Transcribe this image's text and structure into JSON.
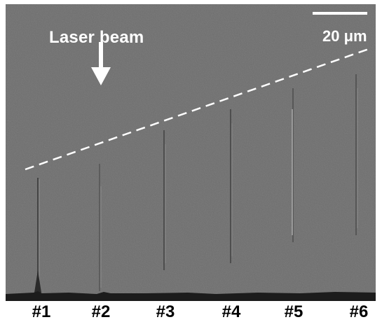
{
  "annotations": {
    "beam_label": "Laser beam",
    "scale_bar_label": "20 μm"
  },
  "tracks": [
    "#1",
    "#2",
    "#3",
    "#4",
    "#5",
    "#6"
  ],
  "colors": {
    "background": "#6e6e6e",
    "annotation": "#ffffff",
    "substrate": "#1c1c1c",
    "track_labels": "#000000"
  },
  "icons": {
    "arrow": "down-arrow-icon"
  }
}
